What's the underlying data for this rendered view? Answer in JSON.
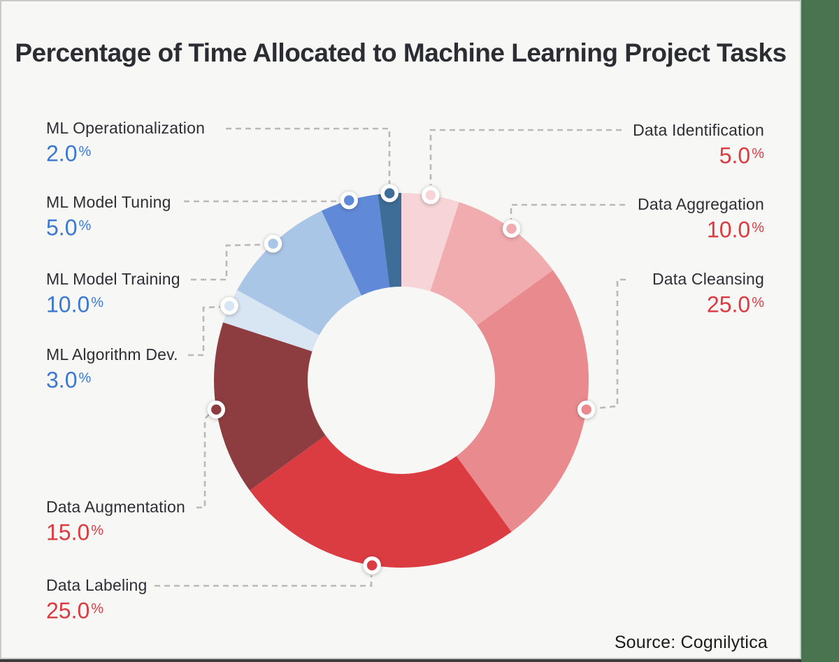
{
  "title": "Percentage of Time Allocated to Machine Learning Project Tasks",
  "source": "Source: Cognilytica",
  "percent_suffix": "%",
  "colors": {
    "background_green": "#4a7350",
    "card_background": "#f7f7f6",
    "card_border": "#c9c9c7",
    "title_text": "#2c2c33",
    "label_text": "#2e2e35",
    "blue_value": "#3a78d2",
    "red_value": "#dc3a41",
    "connector": "#b9b9b9"
  },
  "chart_data": {
    "type": "pie",
    "subtype": "donut",
    "title": "Percentage of Time Allocated to Machine Learning Project Tasks",
    "unit": "%",
    "start_angle_deg": 0,
    "direction": "clockwise",
    "donut_hole_ratio": 0.5,
    "legend_position": "callout-labels",
    "segments": [
      {
        "label": "Data Identification",
        "value": 5.0,
        "display_value": "5.0",
        "color": "#f6d4d7",
        "value_color": "#dc3a41",
        "side": "right"
      },
      {
        "label": "Data Aggregation",
        "value": 10.0,
        "display_value": "10.0",
        "color": "#f0acaf",
        "value_color": "#dc3a41",
        "side": "right"
      },
      {
        "label": "Data Cleansing",
        "value": 25.0,
        "display_value": "25.0",
        "color": "#e98b8e",
        "value_color": "#dc3a41",
        "side": "right"
      },
      {
        "label": "Data Labeling",
        "value": 25.0,
        "display_value": "25.0",
        "color": "#db3c42",
        "value_color": "#dc3a41",
        "side": "left"
      },
      {
        "label": "Data Augmentation",
        "value": 15.0,
        "display_value": "15.0",
        "color": "#8d3c3f",
        "value_color": "#dc3a41",
        "side": "left"
      },
      {
        "label": "ML Algorithm Dev.",
        "value": 3.0,
        "display_value": "3.0",
        "color": "#d8e5f3",
        "value_color": "#3a78d2",
        "side": "left"
      },
      {
        "label": "ML Model Training",
        "value": 10.0,
        "display_value": "10.0",
        "color": "#a9c6e6",
        "value_color": "#3a78d2",
        "side": "left"
      },
      {
        "label": "ML Model Tuning",
        "value": 5.0,
        "display_value": "5.0",
        "color": "#6089d7",
        "value_color": "#3a78d2",
        "side": "left"
      },
      {
        "label": "ML Operationalization",
        "value": 2.0,
        "display_value": "2.0",
        "color": "#3e6d98",
        "value_color": "#3a78d2",
        "side": "left"
      }
    ]
  }
}
